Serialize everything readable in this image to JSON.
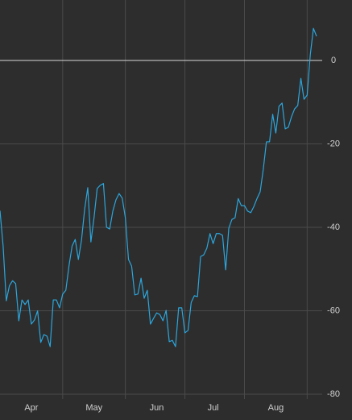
{
  "chart_data": {
    "type": "line",
    "categories": [
      null,
      null,
      null,
      null,
      null,
      null,
      null,
      null,
      null,
      null,
      "Apr",
      null,
      null,
      null,
      null,
      null,
      null,
      null,
      null,
      null,
      null,
      null,
      null,
      null,
      null,
      null,
      null,
      null,
      null,
      null,
      "May",
      null,
      null,
      null,
      null,
      null,
      null,
      null,
      null,
      null,
      null,
      null,
      null,
      null,
      null,
      null,
      null,
      null,
      null,
      null,
      "Jun",
      null,
      null,
      null,
      null,
      null,
      null,
      null,
      null,
      null,
      null,
      null,
      null,
      null,
      null,
      null,
      null,
      null,
      "Jul",
      null,
      null,
      null,
      null,
      null,
      null,
      null,
      null,
      null,
      null,
      null,
      null,
      null,
      null,
      null,
      null,
      null,
      null,
      null,
      "Aug",
      null,
      null,
      null,
      null,
      null,
      null,
      null,
      null,
      null,
      null,
      null,
      null,
      null
    ],
    "values": [
      -36,
      -44.5,
      -57.6,
      -54,
      -52.8,
      -53.5,
      -62.4,
      -57.4,
      -58.5,
      -57.4,
      -63.2,
      -62.2,
      -60,
      -67.6,
      -65.7,
      -66.1,
      -68.6,
      -57.4,
      -57.4,
      -59.3,
      -56,
      -55.1,
      -49.3,
      -44.5,
      -42.9,
      -47.7,
      -43.1,
      -35.7,
      -30.5,
      -43.5,
      -37.7,
      -30.7,
      -29.9,
      -29.5,
      -40,
      -40.4,
      -36.1,
      -33.4,
      -31.9,
      -33,
      -37.7,
      -47.7,
      -49.3,
      -56.2,
      -56,
      -52.2,
      -57,
      -55.1,
      -63.2,
      -61.8,
      -60.5,
      -60.9,
      -62.4,
      -59.9,
      -67.4,
      -67.1,
      -68.6,
      -59.3,
      -59.3,
      -65.3,
      -64.7,
      -58,
      -56.4,
      -56.6,
      -47,
      -46.6,
      -45,
      -41.5,
      -43.9,
      -41.5,
      -41.5,
      -41.9,
      -50.2,
      -40.2,
      -38.1,
      -37.7,
      -33.1,
      -34.8,
      -34.8,
      -36.1,
      -36.5,
      -35,
      -33.1,
      -31.5,
      -26.1,
      -19.5,
      -19.5,
      -12.9,
      -17.4,
      -11,
      -10.2,
      -16.4,
      -16,
      -13.5,
      -11.6,
      -10.8,
      -4.3,
      -9.3,
      -8.3,
      1.4,
      7.7,
      5.8
    ],
    "color": "#2ca6dc",
    "ylim": [
      -80,
      14.5
    ],
    "yticks": [
      0,
      -20,
      -40,
      -60,
      -80
    ],
    "grid": true
  }
}
